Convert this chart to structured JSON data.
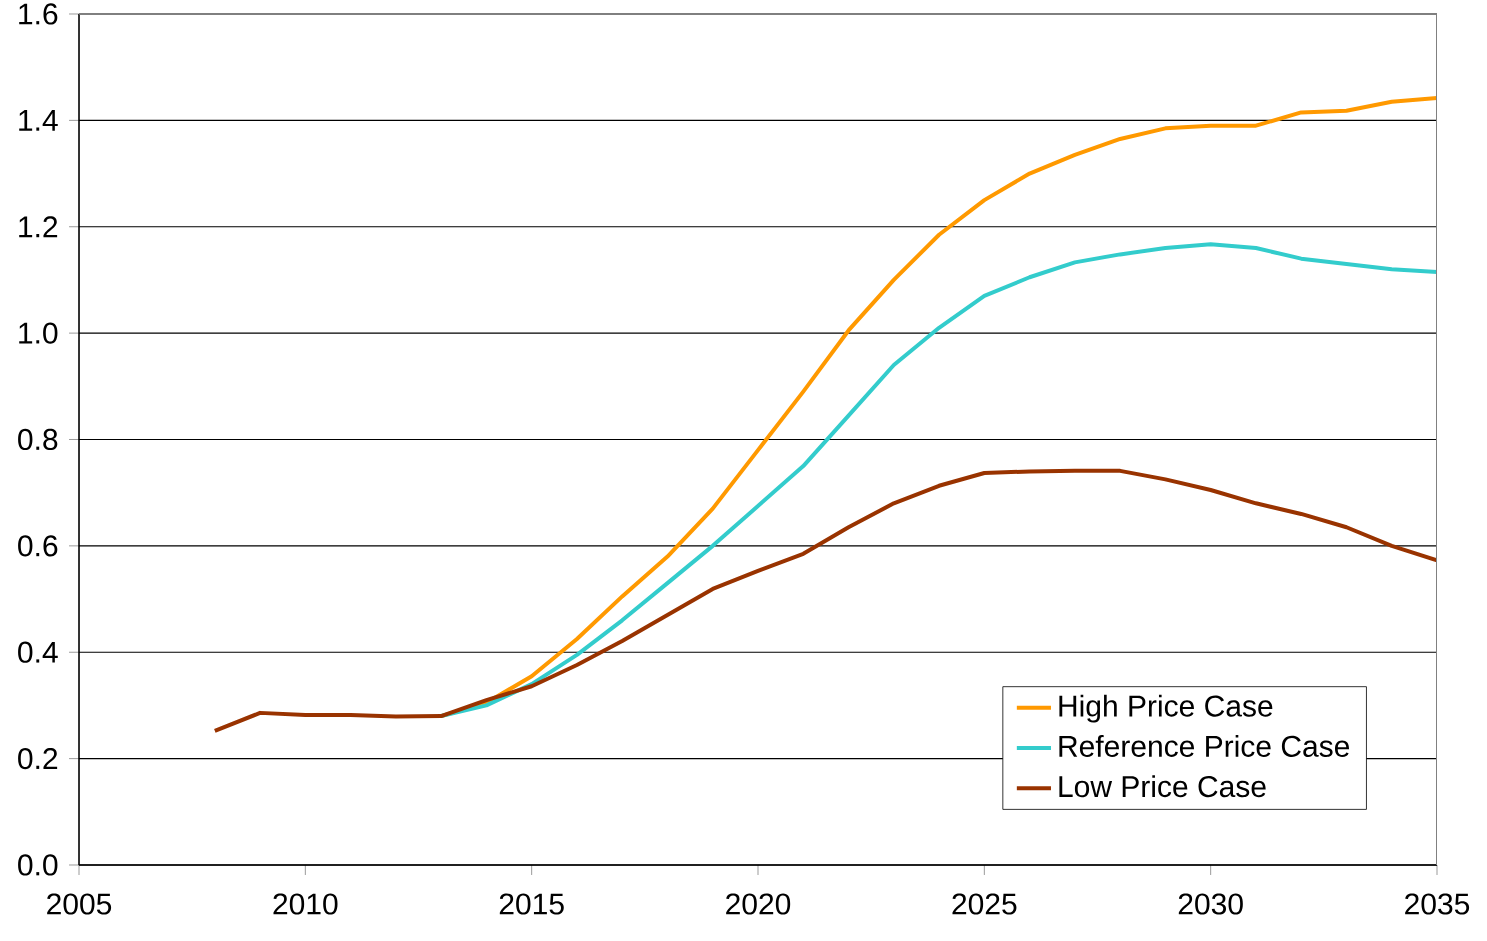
{
  "chart_data": {
    "type": "line",
    "x": [
      2008,
      2009,
      2010,
      2011,
      2012,
      2013,
      2014,
      2015,
      2016,
      2017,
      2018,
      2019,
      2020,
      2021,
      2022,
      2023,
      2024,
      2025,
      2026,
      2027,
      2028,
      2029,
      2030,
      2031,
      2032,
      2033,
      2034,
      2035
    ],
    "series": [
      {
        "name": "High Price Case",
        "color": "#ff9900",
        "values": [
          null,
          null,
          null,
          null,
          null,
          0.28,
          0.305,
          0.355,
          0.425,
          0.505,
          0.58,
          0.67,
          0.78,
          0.89,
          1.005,
          1.1,
          1.185,
          1.25,
          1.3,
          1.335,
          1.365,
          1.385,
          1.39,
          1.39,
          1.415,
          1.418,
          1.435,
          1.442
        ]
      },
      {
        "name": "Reference Price Case",
        "color": "#33cccc",
        "values": [
          null,
          null,
          null,
          null,
          null,
          0.28,
          0.3,
          0.34,
          0.395,
          0.46,
          0.53,
          0.6,
          0.675,
          0.75,
          0.845,
          0.94,
          1.01,
          1.07,
          1.105,
          1.133,
          1.148,
          1.16,
          1.167,
          1.16,
          1.14,
          1.13,
          1.12,
          1.115
        ]
      },
      {
        "name": "Low Price Case",
        "color": "#993300",
        "values": [
          0.252,
          0.286,
          0.282,
          0.282,
          0.279,
          0.28,
          0.31,
          0.336,
          0.376,
          0.421,
          0.47,
          0.519,
          0.553,
          0.585,
          0.635,
          0.68,
          0.713,
          0.737,
          0.74,
          0.741,
          0.741,
          0.725,
          0.705,
          0.68,
          0.66,
          0.635,
          0.6,
          0.573
        ]
      }
    ],
    "xlim": [
      2005,
      2035
    ],
    "xticks": [
      2005,
      2010,
      2015,
      2020,
      2025,
      2030,
      2035
    ],
    "ylim": [
      0,
      1.6
    ],
    "yticks": [
      {
        "value": 0,
        "label": "0.0"
      },
      {
        "value": 0.2,
        "label": "0.2"
      },
      {
        "value": 0.4,
        "label": "0.4"
      },
      {
        "value": 0.6,
        "label": "0.6"
      },
      {
        "value": 0.8,
        "label": "0.8"
      },
      {
        "value": 1.0,
        "label": "1.0"
      },
      {
        "value": 1.2,
        "label": "1.2"
      },
      {
        "value": 1.4,
        "label": "1.4"
      },
      {
        "value": 1.6,
        "label": "1.6"
      }
    ],
    "grid": "y",
    "legend": "bottom right",
    "marker": "none",
    "line_style": "solid"
  }
}
